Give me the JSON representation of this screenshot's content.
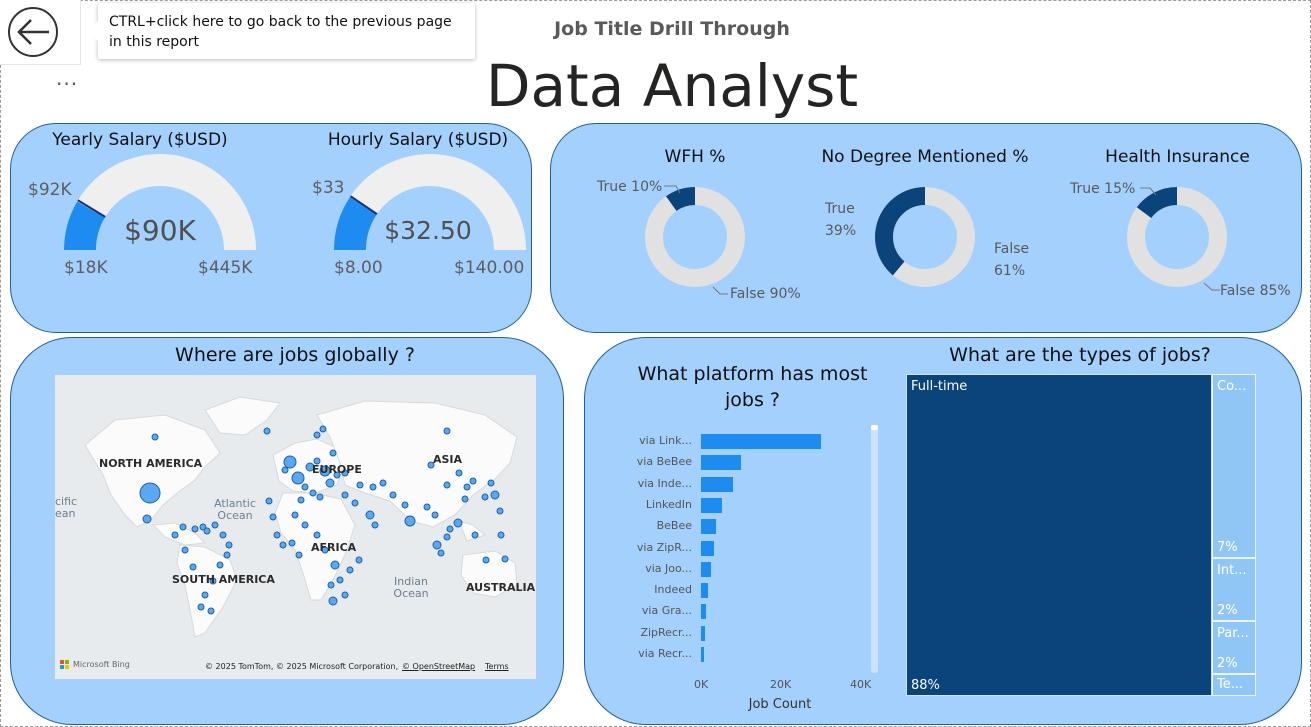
{
  "header": {
    "tooltip": "CTRL+click here to go back to the previous page in this report",
    "more": "...",
    "subtitle": "Job Title Drill Through",
    "title": "Data Analyst"
  },
  "gauges": [
    {
      "title": "Yearly Salary ($USD)",
      "value_label": "$90K",
      "min_label": "$18K",
      "max_label": "$445K",
      "target_label": "$92K",
      "value": 90000,
      "min": 18000,
      "max": 445000,
      "target": 92000
    },
    {
      "title": "Hourly Salary ($USD)",
      "value_label": "$32.50",
      "min_label": "$8.00",
      "max_label": "$140.00",
      "target_label": "$33",
      "value": 32.5,
      "min": 8,
      "max": 140,
      "target": 33
    }
  ],
  "donuts": [
    {
      "title": "WFH %",
      "true_label": "True 10%",
      "false_label": "False 90%",
      "true_pct": 10
    },
    {
      "title": "No Degree Mentioned %",
      "true_label_1": "True",
      "true_label_2": "39%",
      "false_label_1": "False",
      "false_label_2": "61%",
      "true_pct": 39
    },
    {
      "title": "Health Insurance",
      "true_label": "True 15%",
      "false_label": "False 85%",
      "true_pct": 15
    }
  ],
  "map": {
    "title": "Where are jobs globally ?",
    "labels": {
      "na": "NORTH AMERICA",
      "eu": "EUROPE",
      "asia": "ASIA",
      "africa": "AFRICA",
      "sa": "SOUTH AMERICA",
      "au": "AUSTRALIA"
    },
    "oceans": {
      "atlantic_1": "Atlantic",
      "atlantic_2": "Ocean",
      "indian_1": "Indian",
      "indian_2": "Ocean",
      "pacific_1": "cific",
      "pacific_2": "ean"
    },
    "bing": "Microsoft Bing",
    "attribution": "© 2025 TomTom, © 2025 Microsoft Corporation,",
    "osm": "© OpenStreetMap",
    "terms": "Terms"
  },
  "platforms": {
    "title_1": "What platform has most",
    "title_2": "jobs ?",
    "xlabel": "Job Count",
    "ticks": [
      "0K",
      "20K",
      "40K"
    ]
  },
  "job_types": {
    "title": "What are the types of jobs?",
    "items": [
      {
        "label": "Full-time",
        "pct": "88%"
      },
      {
        "label": "Co...",
        "pct": "7%"
      },
      {
        "label": "Int...",
        "pct": "2%"
      },
      {
        "label": "Par...",
        "pct": "2%"
      },
      {
        "label": "Te...",
        "pct": ""
      }
    ]
  },
  "colors": {
    "card": "#a3d0fd",
    "dark_blue": "#0b447a",
    "bar_blue": "#1d8bf0",
    "gauge_bg": "#efefef"
  },
  "chart_data": {
    "type": "bar",
    "title": "What platform has most jobs ?",
    "xlabel": "Job Count",
    "ylabel": "",
    "categories": [
      "via Link...",
      "via BeBee",
      "via Inde...",
      "LinkedIn",
      "BeBee",
      "via ZipR...",
      "via Joo...",
      "Indeed",
      "via Gra...",
      "ZipRecr...",
      "via Recr..."
    ],
    "values": [
      30000,
      10000,
      8000,
      5200,
      3800,
      3200,
      2400,
      1700,
      1300,
      1000,
      800
    ],
    "xlim": [
      0,
      40000
    ]
  }
}
